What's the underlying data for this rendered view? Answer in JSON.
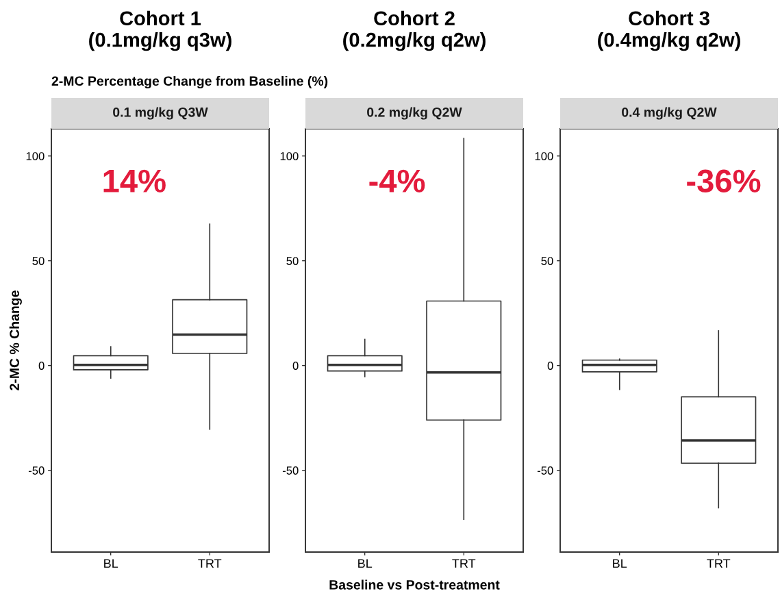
{
  "chart_data": [
    {
      "type": "box",
      "title": "Cohort 1\n(0.1mg/kg q3w)",
      "subtitle": "0.1 mg/kg Q3W",
      "ylabel": "2-MC % Change",
      "annotations": [
        "2-MC Percentage Change from Baseline (%)",
        "14%"
      ],
      "categories": [
        "BL",
        "TRT"
      ],
      "ylim": [
        -89,
        113
      ],
      "yticks": [
        -50,
        0,
        50,
        100
      ],
      "grid": false,
      "boxes": [
        {
          "low": -6,
          "q1": -2,
          "median": 0.3,
          "q3": 4.7,
          "high": 9
        },
        {
          "low": -30.4,
          "q1": 5.8,
          "median": 14.8,
          "q3": 31.4,
          "high": 67.5
        }
      ]
    },
    {
      "type": "box",
      "title": "Cohort 2\n(0.2mg/kg q2w)",
      "subtitle": "0.2 mg/kg Q2W",
      "xlabel": "Baseline vs Post-treatment",
      "annotations": [
        "-4%"
      ],
      "categories": [
        "BL",
        "TRT"
      ],
      "ylim": [
        -89,
        113
      ],
      "yticks": [
        -50,
        0,
        50,
        100
      ],
      "grid": false,
      "boxes": [
        {
          "low": -5.3,
          "q1": -2.6,
          "median": 0.3,
          "q3": 4.7,
          "high": 12.5
        },
        {
          "low": -73.4,
          "q1": -26,
          "median": -3.3,
          "q3": 30.8,
          "high": 108.4
        }
      ]
    },
    {
      "type": "box",
      "title": "Cohort 3\n(0.4mg/kg q2w)",
      "subtitle": "0.4 mg/kg Q2W",
      "annotations": [
        "-36%"
      ],
      "categories": [
        "BL",
        "TRT"
      ],
      "ylim": [
        -89,
        113
      ],
      "yticks": [
        -50,
        0,
        50,
        100
      ],
      "grid": false,
      "boxes": [
        {
          "low": -11.4,
          "q1": -3,
          "median": 0.3,
          "q3": 2.6,
          "high": 3.1
        },
        {
          "low": -67.9,
          "q1": -46.6,
          "median": -35.7,
          "q3": -14.9,
          "high": 16.6
        }
      ]
    }
  ]
}
